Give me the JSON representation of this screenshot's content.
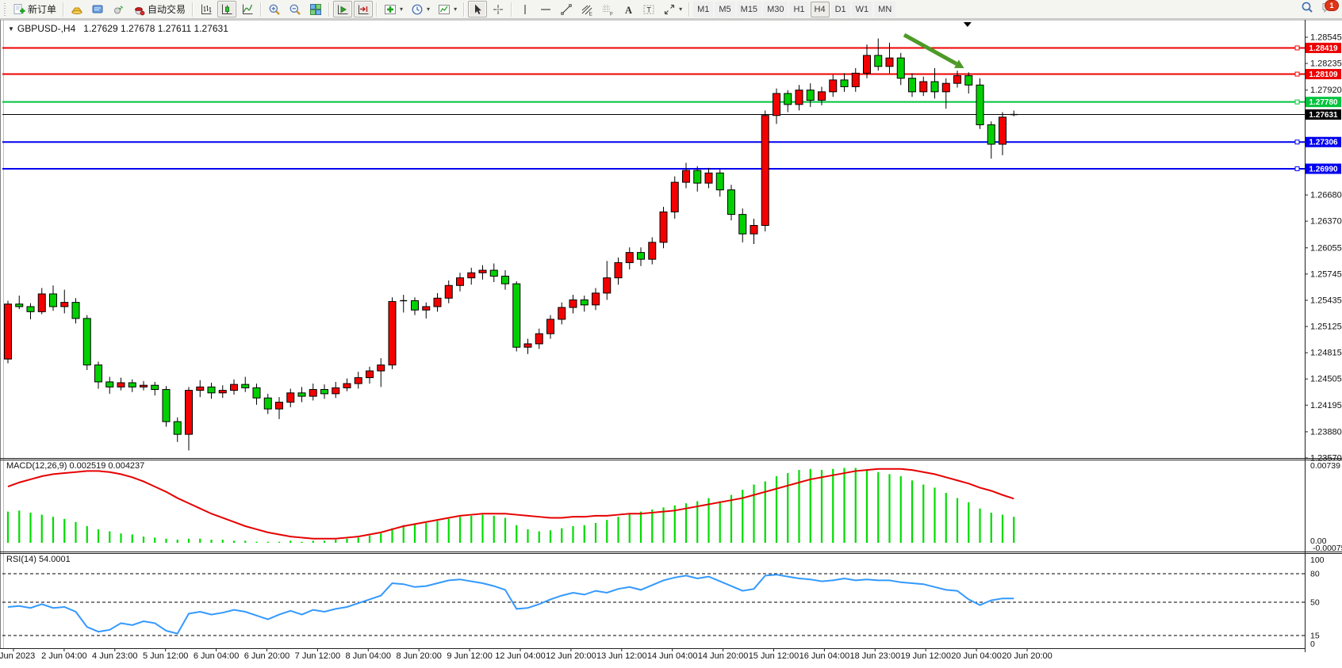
{
  "toolbar": {
    "groups": [
      {
        "items": [
          {
            "name": "new-order-button",
            "icon": "neworder",
            "label": "新订单"
          }
        ]
      },
      {
        "items": [
          {
            "name": "gold-button",
            "icon": "gold"
          },
          {
            "name": "expert-advisors-button",
            "icon": "ea"
          },
          {
            "name": "signals-button",
            "icon": "signal"
          },
          {
            "name": "autotrade-button",
            "icon": "autotrade",
            "label": "自动交易"
          }
        ]
      },
      {
        "items": [
          {
            "name": "bar-chart-button",
            "icon": "bars"
          },
          {
            "name": "candlestick-chart-button",
            "icon": "candles",
            "pressed": true
          },
          {
            "name": "line-chart-button",
            "icon": "linechart"
          }
        ]
      },
      {
        "items": [
          {
            "name": "zoom-in-button",
            "icon": "zoomin"
          },
          {
            "name": "zoom-out-button",
            "icon": "zoomout"
          },
          {
            "name": "tile-windows-button",
            "icon": "tile"
          }
        ]
      },
      {
        "items": [
          {
            "name": "auto-scroll-button",
            "icon": "autoscroll",
            "pressed": true
          },
          {
            "name": "chart-shift-button",
            "icon": "shiftend",
            "pressed": true
          }
        ]
      },
      {
        "items": [
          {
            "name": "indicators-button",
            "icon": "indicators",
            "caret": true
          },
          {
            "name": "periods-button",
            "icon": "clock",
            "caret": true
          },
          {
            "name": "templates-button",
            "icon": "template",
            "caret": true
          }
        ]
      },
      {
        "items": [
          {
            "name": "cursor-button",
            "icon": "cursor",
            "pressed": true
          },
          {
            "name": "crosshair-button",
            "icon": "crosshair"
          }
        ]
      },
      {
        "items": [
          {
            "name": "vertical-line-button",
            "icon": "vline"
          },
          {
            "name": "horizontal-line-button",
            "icon": "hline"
          },
          {
            "name": "trendline-button",
            "icon": "tline"
          },
          {
            "name": "equidistant-channel-button",
            "icon": "fibo"
          },
          {
            "name": "fibonacci-button",
            "icon": "gridf"
          },
          {
            "name": "text-button",
            "icon": "textA"
          },
          {
            "name": "text-label-button",
            "icon": "textbox"
          },
          {
            "name": "arrows-button",
            "icon": "shapes",
            "caret": true
          }
        ]
      }
    ],
    "timeframes": {
      "items": [
        "M1",
        "M5",
        "M15",
        "M30",
        "H1",
        "H4",
        "D1",
        "W1",
        "MN"
      ],
      "selected": "H4"
    },
    "right_icons": [
      {
        "name": "search-button",
        "icon": "search"
      },
      {
        "name": "notifications-button",
        "icon": "chat",
        "badge": "1"
      }
    ]
  },
  "chart": {
    "title": {
      "symbol": "GBPUSD-,H4",
      "ohlc": "1.27629 1.27678 1.27611 1.27631"
    },
    "price_axis": {
      "visible_ticks": [
        "1.28545",
        "1.28235",
        "1.27920",
        "1.26680",
        "1.26370",
        "1.26055",
        "1.25745",
        "1.25435",
        "1.25125",
        "1.24815",
        "1.24505",
        "1.24195",
        "1.23880",
        "1.23570"
      ]
    },
    "levels": [
      {
        "price": 1.28419,
        "label": "1.28419",
        "color": "#ee0000"
      },
      {
        "price": 1.28109,
        "label": "1.28109",
        "color": "#ee0000"
      },
      {
        "price": 1.2778,
        "label": "1.27780",
        "color": "#00c43c"
      },
      {
        "price": 1.27306,
        "label": "1.27306",
        "color": "#0000ee"
      },
      {
        "price": 1.2699,
        "label": "1.26990",
        "color": "#0000ee"
      }
    ],
    "current_price": {
      "value": 1.27631,
      "label": "1.27631",
      "color": "#000000"
    }
  },
  "indicators": {
    "macd": {
      "label": "MACD(12,26,9) 0.002519 0.004237",
      "axis_labels": [
        "0.00739",
        "0.00",
        "-0.000751"
      ]
    },
    "rsi": {
      "label": "RSI(14) 54.0001",
      "axis_labels": [
        "100",
        "80",
        "50",
        "15",
        "0"
      ]
    }
  },
  "date_axis": [
    "1 Jun 2023",
    "2 Jun 04:00",
    "4 Jun 23:00",
    "5 Jun 12:00",
    "6 Jun 04:00",
    "6 Jun 20:00",
    "7 Jun 12:00",
    "8 Jun 04:00",
    "8 Jun 20:00",
    "9 Jun 12:00",
    "12 Jun 04:00",
    "12 Jun 20:00",
    "13 Jun 12:00",
    "14 Jun 04:00",
    "14 Jun 20:00",
    "15 Jun 12:00",
    "16 Jun 04:00",
    "18 Jun 23:00",
    "19 Jun 12:00",
    "20 Jun 04:00",
    "20 Jun 20:00"
  ],
  "chart_data": {
    "type": "candlestick",
    "symbol": "GBPUSD-",
    "timeframe": "H4",
    "title": "GBPUSD-,H4",
    "ohlc_display": {
      "open": 1.27629,
      "high": 1.27678,
      "low": 1.27611,
      "close": 1.27631
    },
    "y_axis": {
      "min": 1.2357,
      "max": 1.28545,
      "ticks": [
        1.28545,
        1.28235,
        1.2792,
        1.2761,
        1.273,
        1.2699,
        1.2668,
        1.2637,
        1.26055,
        1.25745,
        1.25435,
        1.25125,
        1.24815,
        1.24505,
        1.24195,
        1.2388,
        1.2357
      ]
    },
    "x_labels": [
      "1 Jun 2023",
      "2 Jun 04:00",
      "4 Jun 23:00",
      "5 Jun 12:00",
      "6 Jun 04:00",
      "6 Jun 20:00",
      "7 Jun 12:00",
      "8 Jun 04:00",
      "8 Jun 20:00",
      "9 Jun 12:00",
      "12 Jun 04:00",
      "12 Jun 20:00",
      "13 Jun 12:00",
      "14 Jun 04:00",
      "14 Jun 20:00",
      "15 Jun 12:00",
      "16 Jun 04:00",
      "18 Jun 23:00",
      "19 Jun 12:00",
      "20 Jun 04:00",
      "20 Jun 20:00"
    ],
    "colors": {
      "bull": "#f40000",
      "bear": "#00d000",
      "outline": "#000000",
      "macd_hist": "#00dc00",
      "macd_signal": "#e60000",
      "rsi_line": "#3399ff",
      "arrow": "#4e9a28"
    },
    "candles": [
      [
        1.2474,
        1.2543,
        1.2469,
        1.2539
      ],
      [
        1.2539,
        1.2549,
        1.2533,
        1.2536
      ],
      [
        1.2536,
        1.254,
        1.2521,
        1.253
      ],
      [
        1.253,
        1.2558,
        1.2527,
        1.2551
      ],
      [
        1.2551,
        1.2561,
        1.2531,
        1.2536
      ],
      [
        1.2536,
        1.2556,
        1.2528,
        1.2541
      ],
      [
        1.2541,
        1.2546,
        1.2516,
        1.2522
      ],
      [
        1.2522,
        1.2526,
        1.2461,
        1.2467
      ],
      [
        1.2467,
        1.2471,
        1.2439,
        1.2447
      ],
      [
        1.2447,
        1.2453,
        1.2433,
        1.2441
      ],
      [
        1.2441,
        1.2452,
        1.2437,
        1.2446
      ],
      [
        1.2446,
        1.245,
        1.2435,
        1.2441
      ],
      [
        1.2441,
        1.2448,
        1.2437,
        1.2443
      ],
      [
        1.2443,
        1.2447,
        1.2431,
        1.2438
      ],
      [
        1.2438,
        1.2442,
        1.2394,
        1.24
      ],
      [
        1.24,
        1.2405,
        1.2376,
        1.2385
      ],
      [
        1.2385,
        1.2441,
        1.2366,
        1.2437
      ],
      [
        1.2437,
        1.2449,
        1.2429,
        1.2441
      ],
      [
        1.2441,
        1.2446,
        1.2427,
        1.2434
      ],
      [
        1.2434,
        1.2443,
        1.2428,
        1.2437
      ],
      [
        1.2437,
        1.245,
        1.2432,
        1.2444
      ],
      [
        1.2444,
        1.2453,
        1.2435,
        1.244
      ],
      [
        1.244,
        1.2445,
        1.242,
        1.2428
      ],
      [
        1.2428,
        1.2433,
        1.2409,
        1.2415
      ],
      [
        1.2415,
        1.2429,
        1.2403,
        1.2423
      ],
      [
        1.2423,
        1.2439,
        1.2417,
        1.2434
      ],
      [
        1.2434,
        1.2441,
        1.2423,
        1.243
      ],
      [
        1.243,
        1.2445,
        1.2425,
        1.2438
      ],
      [
        1.2438,
        1.2444,
        1.2427,
        1.2433
      ],
      [
        1.2433,
        1.2447,
        1.2428,
        1.244
      ],
      [
        1.244,
        1.2451,
        1.2436,
        1.2445
      ],
      [
        1.2445,
        1.2459,
        1.2439,
        1.2452
      ],
      [
        1.2452,
        1.2465,
        1.2445,
        1.246
      ],
      [
        1.246,
        1.2475,
        1.2441,
        1.2467
      ],
      [
        1.2467,
        1.2547,
        1.2462,
        1.2542
      ],
      [
        1.2542,
        1.255,
        1.2529,
        1.2543
      ],
      [
        1.2543,
        1.2547,
        1.2526,
        1.2532
      ],
      [
        1.2532,
        1.2541,
        1.2522,
        1.2536
      ],
      [
        1.2536,
        1.2552,
        1.253,
        1.2546
      ],
      [
        1.2546,
        1.2567,
        1.254,
        1.2561
      ],
      [
        1.2561,
        1.2576,
        1.2554,
        1.257
      ],
      [
        1.257,
        1.2582,
        1.2562,
        1.2576
      ],
      [
        1.2576,
        1.2585,
        1.2568,
        1.2579
      ],
      [
        1.2579,
        1.2587,
        1.2565,
        1.2572
      ],
      [
        1.2572,
        1.2579,
        1.2556,
        1.2563
      ],
      [
        1.2563,
        1.2566,
        1.2483,
        1.2488
      ],
      [
        1.2488,
        1.2498,
        1.248,
        1.2492
      ],
      [
        1.2492,
        1.251,
        1.2486,
        1.2504
      ],
      [
        1.2504,
        1.2526,
        1.2498,
        1.2521
      ],
      [
        1.2521,
        1.2541,
        1.2515,
        1.2535
      ],
      [
        1.2535,
        1.255,
        1.2528,
        1.2544
      ],
      [
        1.2544,
        1.2549,
        1.253,
        1.2538
      ],
      [
        1.2538,
        1.2558,
        1.2532,
        1.2552
      ],
      [
        1.2552,
        1.259,
        1.2544,
        1.257
      ],
      [
        1.257,
        1.2594,
        1.2562,
        1.2588
      ],
      [
        1.2588,
        1.2606,
        1.258,
        1.26
      ],
      [
        1.26,
        1.2606,
        1.2584,
        1.2592
      ],
      [
        1.2592,
        1.2618,
        1.2586,
        1.2612
      ],
      [
        1.2612,
        1.2654,
        1.2605,
        1.2648
      ],
      [
        1.2648,
        1.269,
        1.264,
        1.2683
      ],
      [
        1.2683,
        1.2706,
        1.2676,
        1.2697
      ],
      [
        1.2697,
        1.2702,
        1.2672,
        1.2682
      ],
      [
        1.2682,
        1.27,
        1.2676,
        1.2694
      ],
      [
        1.2694,
        1.2698,
        1.2666,
        1.2674
      ],
      [
        1.2674,
        1.268,
        1.2638,
        1.2645
      ],
      [
        1.2645,
        1.2652,
        1.2612,
        1.2622
      ],
      [
        1.2622,
        1.264,
        1.261,
        1.2632
      ],
      [
        1.2632,
        1.2768,
        1.2625,
        1.2762
      ],
      [
        1.2762,
        1.2794,
        1.2752,
        1.2788
      ],
      [
        1.2788,
        1.2792,
        1.2766,
        1.2775
      ],
      [
        1.2775,
        1.2798,
        1.2768,
        1.2792
      ],
      [
        1.2792,
        1.28,
        1.2772,
        1.278
      ],
      [
        1.278,
        1.2796,
        1.2774,
        1.279
      ],
      [
        1.279,
        1.281,
        1.2784,
        1.2804
      ],
      [
        1.2804,
        1.2812,
        1.279,
        1.2796
      ],
      [
        1.2796,
        1.2818,
        1.279,
        1.2812
      ],
      [
        1.2812,
        1.2846,
        1.2806,
        1.2833
      ],
      [
        1.2833,
        1.2853,
        1.2815,
        1.282
      ],
      [
        1.282,
        1.2848,
        1.2812,
        1.283
      ],
      [
        1.283,
        1.2836,
        1.2798,
        1.2806
      ],
      [
        1.2806,
        1.2812,
        1.2784,
        1.279
      ],
      [
        1.279,
        1.2808,
        1.2785,
        1.2802
      ],
      [
        1.2802,
        1.2818,
        1.2782,
        1.279
      ],
      [
        1.279,
        1.2806,
        1.277,
        1.28
      ],
      [
        1.28,
        1.2815,
        1.2795,
        1.2809
      ],
      [
        1.2809,
        1.2813,
        1.2788,
        1.2798
      ],
      [
        1.2798,
        1.2806,
        1.2746,
        1.2751
      ],
      [
        1.2751,
        1.2755,
        1.2711,
        1.2728
      ],
      [
        1.2728,
        1.2766,
        1.2715,
        1.276
      ],
      [
        1.27629,
        1.27678,
        1.27611,
        1.27631
      ]
    ],
    "levels": [
      {
        "price": 1.28419,
        "color": "#ee0000",
        "style": "solid"
      },
      {
        "price": 1.28109,
        "color": "#ee0000",
        "style": "solid"
      },
      {
        "price": 1.2778,
        "color": "#00c43c",
        "style": "solid"
      },
      {
        "price": 1.27306,
        "color": "#0000ee",
        "style": "solid"
      },
      {
        "price": 1.2699,
        "color": "#0000ee",
        "style": "solid"
      }
    ],
    "current_price": 1.27631,
    "macd": {
      "params": [
        12,
        26,
        9
      ],
      "current_main": 0.002519,
      "current_signal": 0.004237,
      "range": [
        -0.000751,
        0.00739
      ],
      "histogram": [
        0.003,
        0.0031,
        0.0029,
        0.0027,
        0.0025,
        0.0023,
        0.002,
        0.0016,
        0.0013,
        0.0011,
        0.0009,
        0.0008,
        0.0006,
        0.0005,
        0.0004,
        0.0003,
        0.0004,
        0.0004,
        0.0003,
        0.0003,
        0.0002,
        0.0002,
        0.0001,
        0.0001,
        0.0001,
        0.0002,
        0.0001,
        0.0002,
        0.0002,
        0.0003,
        0.0004,
        0.0005,
        0.0007,
        0.0009,
        0.0014,
        0.0017,
        0.0018,
        0.0019,
        0.0021,
        0.0023,
        0.0025,
        0.0026,
        0.0027,
        0.0026,
        0.0024,
        0.0017,
        0.0013,
        0.0011,
        0.0012,
        0.0014,
        0.0016,
        0.0017,
        0.0019,
        0.0022,
        0.0025,
        0.0028,
        0.003,
        0.0032,
        0.0034,
        0.0036,
        0.0038,
        0.004,
        0.0043,
        0.004,
        0.0046,
        0.0051,
        0.0056,
        0.0059,
        0.0064,
        0.0067,
        0.007,
        0.0071,
        0.007,
        0.0071,
        0.0072,
        0.0072,
        0.007,
        0.0068,
        0.0066,
        0.0064,
        0.006,
        0.0056,
        0.0053,
        0.0048,
        0.0043,
        0.0039,
        0.0033,
        0.0029,
        0.0027,
        0.0025
      ],
      "signal": [
        0.0054,
        0.0058,
        0.0061,
        0.0064,
        0.0066,
        0.0067,
        0.0068,
        0.0069,
        0.0069,
        0.0068,
        0.0066,
        0.0063,
        0.0059,
        0.0054,
        0.0049,
        0.0043,
        0.0038,
        0.0033,
        0.0028,
        0.0024,
        0.002,
        0.0016,
        0.0013,
        0.001,
        0.0008,
        0.0006,
        0.0005,
        0.0004,
        0.0004,
        0.0004,
        0.0005,
        0.0006,
        0.0008,
        0.001,
        0.0013,
        0.0016,
        0.0018,
        0.002,
        0.0022,
        0.0024,
        0.0026,
        0.0027,
        0.0028,
        0.0028,
        0.0028,
        0.0027,
        0.0026,
        0.0025,
        0.0024,
        0.0024,
        0.0025,
        0.0025,
        0.0026,
        0.0026,
        0.0027,
        0.0028,
        0.0028,
        0.0029,
        0.003,
        0.0031,
        0.0033,
        0.0035,
        0.0037,
        0.0039,
        0.0041,
        0.0043,
        0.0046,
        0.0049,
        0.0052,
        0.0055,
        0.0058,
        0.0061,
        0.0063,
        0.0065,
        0.0067,
        0.0069,
        0.007,
        0.0071,
        0.0071,
        0.0071,
        0.007,
        0.0068,
        0.0066,
        0.0063,
        0.006,
        0.0057,
        0.0053,
        0.005,
        0.0046,
        0.00424
      ]
    },
    "rsi": {
      "period": 14,
      "current": 54.0001,
      "range": [
        0,
        100
      ],
      "guides": [
        80,
        50,
        15
      ],
      "values": [
        45,
        46,
        44,
        48,
        44,
        45,
        40,
        24,
        19,
        21,
        28,
        26,
        30,
        28,
        20,
        17,
        38,
        40,
        37,
        39,
        42,
        40,
        36,
        32,
        37,
        41,
        37,
        42,
        40,
        43,
        45,
        49,
        53,
        57,
        70,
        69,
        66,
        67,
        70,
        73,
        74,
        72,
        70,
        67,
        63,
        43,
        44,
        48,
        53,
        57,
        60,
        58,
        62,
        60,
        64,
        66,
        63,
        68,
        73,
        76,
        78,
        75,
        77,
        72,
        67,
        62,
        64,
        78,
        79,
        77,
        75,
        74,
        72,
        73,
        75,
        73,
        74,
        73,
        73,
        71,
        70,
        69,
        66,
        63,
        62,
        53,
        47,
        52,
        54,
        54
      ]
    },
    "annotation_arrow": {
      "from": {
        "bar": 79.3,
        "price": 1.28573
      },
      "to": {
        "bar": 84.6,
        "price": 1.2818
      }
    },
    "top_marker": {
      "bar": 84.9
    }
  }
}
